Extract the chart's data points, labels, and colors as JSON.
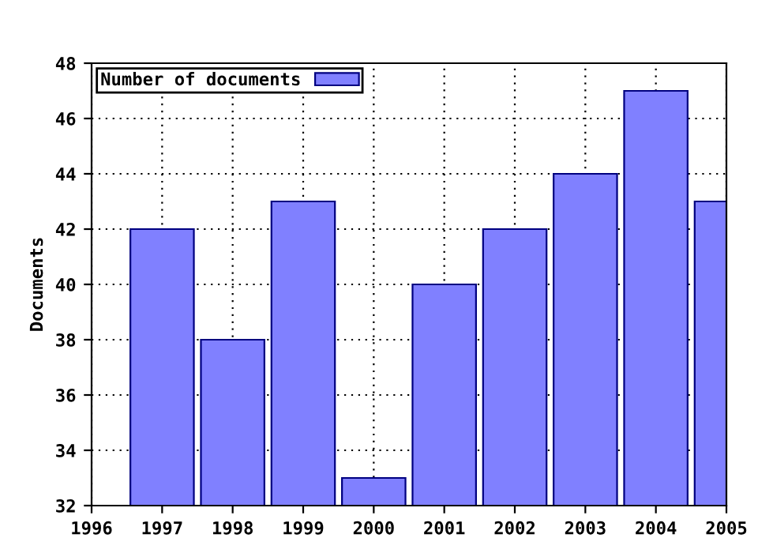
{
  "chart_data": {
    "type": "bar",
    "ylabel": "Documents",
    "x": [
      1997,
      1998,
      1999,
      2000,
      2001,
      2002,
      2003,
      2004,
      2005
    ],
    "series": [
      {
        "name": "Number of documents",
        "color": "#8080ff",
        "values": [
          42,
          38,
          43,
          33,
          40,
          42,
          44,
          47,
          43
        ]
      }
    ],
    "xlim": [
      1996,
      2005
    ],
    "xticks": [
      1996,
      1997,
      1998,
      1999,
      2000,
      2001,
      2002,
      2003,
      2004,
      2005
    ],
    "ylim": [
      32,
      48
    ],
    "yticks": [
      32,
      34,
      36,
      38,
      40,
      42,
      44,
      46,
      48
    ],
    "grid": true,
    "legend": "top left"
  }
}
